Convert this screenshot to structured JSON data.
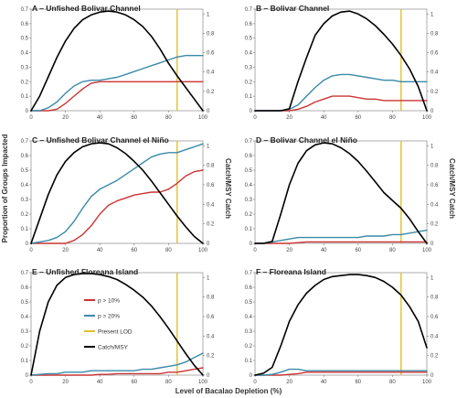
{
  "figure": {
    "xlabel": "Level of Bacalao Depletion (%)",
    "ylabel_left": "Proportion of Groups Impacted",
    "ylabel_right": "Catch/MSY Catch"
  },
  "colors": {
    "p10": "#cc3333",
    "p20": "#3a8aa8",
    "lod": "#e0c030",
    "catch": "#000000"
  },
  "legend": {
    "p10": "p > 10%",
    "p20": "p > 20%",
    "lod": "Present LOD",
    "catch": "Catch/MSY"
  },
  "chart_data": [
    {
      "type": "line",
      "title": "A – Unfished Bolivar Channel",
      "xlim": [
        0,
        100
      ],
      "ylim": [
        0,
        0.7
      ],
      "y2lim": [
        0,
        1.05
      ],
      "xticks": [
        0,
        20,
        40,
        60,
        80,
        100
      ],
      "yticks": [
        0,
        0.1,
        0.2,
        0.3,
        0.4,
        0.5,
        0.6,
        0.7
      ],
      "y2ticks": [
        0,
        0.2,
        0.4,
        0.6,
        0.8,
        1
      ],
      "lod": 85,
      "x": [
        0,
        5,
        10,
        15,
        20,
        25,
        30,
        35,
        40,
        45,
        50,
        55,
        60,
        65,
        70,
        75,
        80,
        85,
        90,
        95,
        100
      ],
      "series": [
        {
          "key": "p10",
          "values": [
            0,
            0,
            0,
            0.01,
            0.05,
            0.1,
            0.15,
            0.19,
            0.2,
            0.2,
            0.2,
            0.2,
            0.2,
            0.2,
            0.2,
            0.2,
            0.2,
            0.2,
            0.2,
            0.2,
            0.2
          ]
        },
        {
          "key": "p20",
          "values": [
            0,
            0,
            0.02,
            0.06,
            0.12,
            0.17,
            0.2,
            0.21,
            0.21,
            0.22,
            0.23,
            0.25,
            0.27,
            0.29,
            0.31,
            0.33,
            0.35,
            0.37,
            0.38,
            0.38,
            0.38
          ]
        },
        {
          "key": "catch",
          "axis": "right",
          "values": [
            0,
            0.15,
            0.35,
            0.55,
            0.72,
            0.85,
            0.94,
            0.99,
            1.02,
            1.03,
            1.02,
            0.99,
            0.94,
            0.87,
            0.77,
            0.64,
            0.49,
            0.36,
            0.24,
            0.12,
            0
          ]
        }
      ]
    },
    {
      "type": "line",
      "title": "B – Bolivar Channel",
      "xlim": [
        0,
        100
      ],
      "ylim": [
        0,
        0.7
      ],
      "y2lim": [
        0,
        1.05
      ],
      "xticks": [
        0,
        20,
        40,
        60,
        80,
        100
      ],
      "yticks": [
        0,
        0.1,
        0.2,
        0.3,
        0.4,
        0.5,
        0.6,
        0.7
      ],
      "y2ticks": [
        0,
        0.2,
        0.4,
        0.6,
        0.8,
        1
      ],
      "lod": 85,
      "x": [
        0,
        5,
        10,
        15,
        20,
        25,
        30,
        35,
        40,
        45,
        50,
        55,
        60,
        65,
        70,
        75,
        80,
        85,
        90,
        95,
        100
      ],
      "series": [
        {
          "key": "p10",
          "values": [
            0,
            0,
            0,
            0,
            0,
            0.01,
            0.03,
            0.06,
            0.08,
            0.1,
            0.1,
            0.1,
            0.09,
            0.08,
            0.08,
            0.07,
            0.07,
            0.07,
            0.07,
            0.07,
            0.07
          ]
        },
        {
          "key": "p20",
          "values": [
            0,
            0,
            0,
            0,
            0.01,
            0.04,
            0.1,
            0.16,
            0.21,
            0.24,
            0.25,
            0.25,
            0.24,
            0.23,
            0.22,
            0.21,
            0.21,
            0.2,
            0.2,
            0.2,
            0.2
          ]
        },
        {
          "key": "catch",
          "axis": "right",
          "values": [
            0,
            0,
            0,
            0,
            0.02,
            0.3,
            0.55,
            0.78,
            0.9,
            0.98,
            1.02,
            1.03,
            1.0,
            0.95,
            0.88,
            0.79,
            0.69,
            0.57,
            0.43,
            0.25,
            0
          ]
        }
      ]
    },
    {
      "type": "line",
      "title": "C – Unfished Bolivar Channel el Niño",
      "xlim": [
        0,
        100
      ],
      "ylim": [
        0,
        0.7
      ],
      "y2lim": [
        0,
        1.05
      ],
      "xticks": [
        0,
        20,
        40,
        60,
        80,
        100
      ],
      "yticks": [
        0,
        0.1,
        0.2,
        0.3,
        0.4,
        0.5,
        0.6,
        0.7
      ],
      "y2ticks": [
        0,
        0.2,
        0.4,
        0.6,
        0.8,
        1
      ],
      "lod": 85,
      "x": [
        0,
        5,
        10,
        15,
        20,
        25,
        30,
        35,
        40,
        45,
        50,
        55,
        60,
        65,
        70,
        75,
        80,
        85,
        90,
        95,
        100
      ],
      "series": [
        {
          "key": "p10",
          "values": [
            0,
            0,
            0,
            0,
            0,
            0.02,
            0.06,
            0.12,
            0.2,
            0.26,
            0.29,
            0.31,
            0.33,
            0.34,
            0.35,
            0.35,
            0.37,
            0.41,
            0.46,
            0.49,
            0.5
          ]
        },
        {
          "key": "p20",
          "values": [
            0,
            0.01,
            0.02,
            0.04,
            0.08,
            0.15,
            0.24,
            0.32,
            0.37,
            0.4,
            0.43,
            0.47,
            0.51,
            0.55,
            0.59,
            0.61,
            0.62,
            0.62,
            0.64,
            0.66,
            0.68
          ]
        },
        {
          "key": "catch",
          "axis": "right",
          "values": [
            0,
            0.25,
            0.5,
            0.7,
            0.84,
            0.93,
            0.99,
            1.02,
            1.03,
            1.02,
            0.98,
            0.92,
            0.84,
            0.75,
            0.64,
            0.52,
            0.4,
            0.28,
            0.17,
            0.07,
            0
          ]
        }
      ]
    },
    {
      "type": "line",
      "title": "D – Bolivar Channel el Niño",
      "xlim": [
        0,
        100
      ],
      "ylim": [
        0,
        0.7
      ],
      "y2lim": [
        0,
        1.05
      ],
      "xticks": [
        0,
        20,
        40,
        60,
        80,
        100
      ],
      "yticks": [
        0,
        0.1,
        0.2,
        0.3,
        0.4,
        0.5,
        0.6,
        0.7
      ],
      "y2ticks": [
        0,
        0.2,
        0.4,
        0.6,
        0.8,
        1
      ],
      "lod": 85,
      "x": [
        0,
        5,
        10,
        15,
        20,
        25,
        30,
        35,
        40,
        45,
        50,
        55,
        60,
        65,
        70,
        75,
        80,
        85,
        90,
        95,
        100
      ],
      "series": [
        {
          "key": "p10",
          "values": [
            0,
            0,
            0,
            0,
            0,
            0.005,
            0.01,
            0.01,
            0.01,
            0.01,
            0.01,
            0.01,
            0.01,
            0.01,
            0.01,
            0.01,
            0.01,
            0.01,
            0.01,
            0.01,
            0.01
          ]
        },
        {
          "key": "p20",
          "values": [
            0,
            0,
            0.01,
            0.02,
            0.03,
            0.04,
            0.04,
            0.04,
            0.04,
            0.04,
            0.04,
            0.04,
            0.04,
            0.05,
            0.05,
            0.05,
            0.06,
            0.06,
            0.07,
            0.08,
            0.09
          ]
        },
        {
          "key": "catch",
          "axis": "right",
          "values": [
            0,
            0,
            0.02,
            0.3,
            0.6,
            0.82,
            0.95,
            1.01,
            1.03,
            1.02,
            0.98,
            0.92,
            0.84,
            0.74,
            0.63,
            0.52,
            0.44,
            0.36,
            0.25,
            0.12,
            0
          ]
        }
      ]
    },
    {
      "type": "line",
      "title": "E – Unfished Floreana Island",
      "xlim": [
        0,
        100
      ],
      "ylim": [
        0,
        0.7
      ],
      "y2lim": [
        0,
        1.05
      ],
      "xticks": [
        0,
        20,
        40,
        60,
        80,
        100
      ],
      "yticks": [
        0,
        0.1,
        0.2,
        0.3,
        0.4,
        0.5,
        0.6,
        0.7
      ],
      "y2ticks": [
        0,
        0.2,
        0.4,
        0.6,
        0.8,
        1
      ],
      "lod": 85,
      "x": [
        0,
        5,
        10,
        15,
        20,
        25,
        30,
        35,
        40,
        45,
        50,
        55,
        60,
        65,
        70,
        75,
        80,
        85,
        90,
        95,
        100
      ],
      "series": [
        {
          "key": "p10",
          "values": [
            0,
            0,
            0,
            0,
            0,
            0,
            0,
            0,
            0.005,
            0.005,
            0.01,
            0.01,
            0.01,
            0.01,
            0.01,
            0.01,
            0.02,
            0.02,
            0.03,
            0.04,
            0.05
          ]
        },
        {
          "key": "p20",
          "values": [
            0,
            0.005,
            0.01,
            0.01,
            0.02,
            0.02,
            0.02,
            0.03,
            0.03,
            0.03,
            0.03,
            0.03,
            0.03,
            0.04,
            0.04,
            0.05,
            0.06,
            0.07,
            0.09,
            0.12,
            0.15
          ]
        },
        {
          "key": "catch",
          "axis": "right",
          "values": [
            0,
            0.45,
            0.75,
            0.92,
            1.0,
            1.03,
            1.04,
            1.04,
            1.03,
            1.01,
            0.98,
            0.93,
            0.87,
            0.8,
            0.71,
            0.6,
            0.48,
            0.35,
            0.22,
            0.1,
            0
          ]
        }
      ]
    },
    {
      "type": "line",
      "title": "F – Floreana Island",
      "xlim": [
        0,
        100
      ],
      "ylim": [
        0,
        0.7
      ],
      "y2lim": [
        0,
        1.05
      ],
      "xticks": [
        0,
        20,
        40,
        60,
        80,
        100
      ],
      "yticks": [
        0,
        0.1,
        0.2,
        0.3,
        0.4,
        0.5,
        0.6,
        0.7
      ],
      "y2ticks": [
        0,
        0.2,
        0.4,
        0.6,
        0.8,
        1
      ],
      "lod": 85,
      "x": [
        0,
        5,
        10,
        15,
        20,
        25,
        30,
        35,
        40,
        45,
        50,
        55,
        60,
        65,
        70,
        75,
        80,
        85,
        90,
        95,
        100
      ],
      "series": [
        {
          "key": "p10",
          "values": [
            0,
            0,
            0,
            0,
            0.005,
            0.01,
            0.02,
            0.02,
            0.02,
            0.02,
            0.02,
            0.02,
            0.02,
            0.02,
            0.02,
            0.02,
            0.02,
            0.02,
            0.02,
            0.02,
            0.02
          ]
        },
        {
          "key": "p20",
          "values": [
            0,
            0,
            0.005,
            0.02,
            0.04,
            0.04,
            0.03,
            0.03,
            0.03,
            0.03,
            0.03,
            0.03,
            0.03,
            0.03,
            0.03,
            0.03,
            0.03,
            0.03,
            0.03,
            0.03,
            0.03
          ]
        },
        {
          "key": "catch",
          "axis": "right",
          "values": [
            0,
            0.02,
            0.08,
            0.3,
            0.55,
            0.72,
            0.84,
            0.92,
            0.98,
            1.01,
            1.02,
            1.03,
            1.03,
            1.02,
            1.0,
            0.96,
            0.9,
            0.82,
            0.7,
            0.55,
            0.28
          ]
        }
      ]
    }
  ]
}
